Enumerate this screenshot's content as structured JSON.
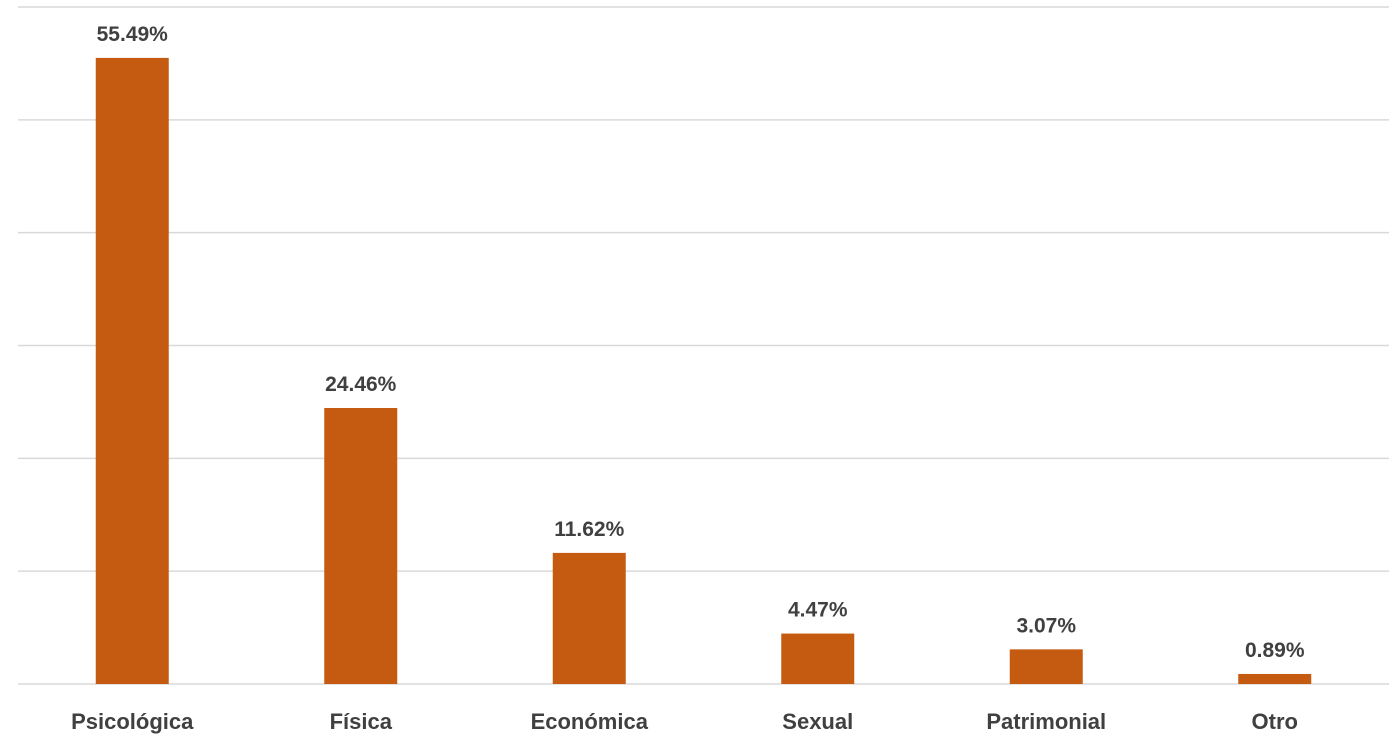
{
  "chart_data": {
    "type": "bar",
    "categories": [
      "Psicológica",
      "Física",
      "Económica",
      "Sexual",
      "Patrimonial",
      "Otro"
    ],
    "values": [
      55.49,
      24.46,
      11.62,
      4.47,
      3.07,
      0.89
    ],
    "data_labels": [
      "55.49%",
      "24.46%",
      "11.62%",
      "4.47%",
      "3.07%",
      "0.89%"
    ],
    "title": "",
    "xlabel": "",
    "ylabel": "",
    "ylim": [
      0,
      60
    ],
    "y_grid_step": 10,
    "grid": true,
    "legend": "none",
    "bar_color": "#C55A11",
    "label_color": "#404040",
    "grid_color": "#D9D9D9"
  }
}
